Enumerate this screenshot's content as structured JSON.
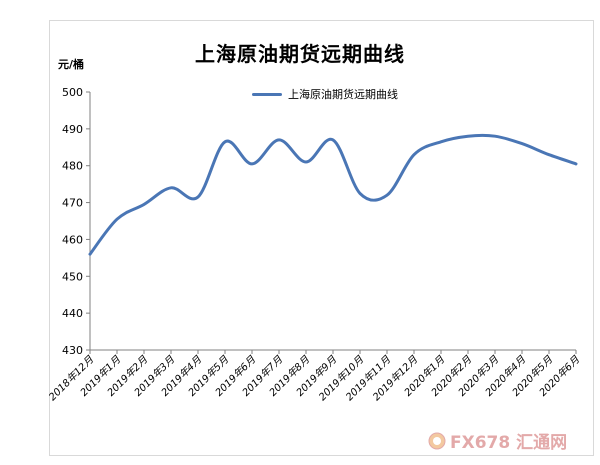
{
  "chart_data": {
    "type": "line",
    "title": "上海原油期货远期曲线",
    "ylabel": "元/桶",
    "xlabel": "",
    "ylim": [
      430,
      500
    ],
    "y_ticks": [
      430,
      440,
      450,
      460,
      470,
      480,
      490,
      500
    ],
    "legend_position": "top-center",
    "grid": false,
    "categories": [
      "2018年12月",
      "2019年1月",
      "2019年2月",
      "2019年3月",
      "2019年4月",
      "2019年5月",
      "2019年6月",
      "2019年7月",
      "2019年8月",
      "2019年9月",
      "2019年10月",
      "2019年11月",
      "2019年12月",
      "2020年1月",
      "2020年2月",
      "2020年3月",
      "2020年4月",
      "2020年5月",
      "2020年6月"
    ],
    "series": [
      {
        "name": "上海原油期货远期曲线",
        "color": "#4a76b5",
        "values": [
          456,
          465.5,
          469.5,
          474,
          471.5,
          486.5,
          480.5,
          487,
          481,
          487,
          472.5,
          472,
          483,
          486.5,
          488,
          488,
          486,
          483,
          480.5
        ]
      }
    ]
  },
  "watermark": {
    "text": "FX678 汇通网",
    "icon": "coin-logo-icon"
  }
}
